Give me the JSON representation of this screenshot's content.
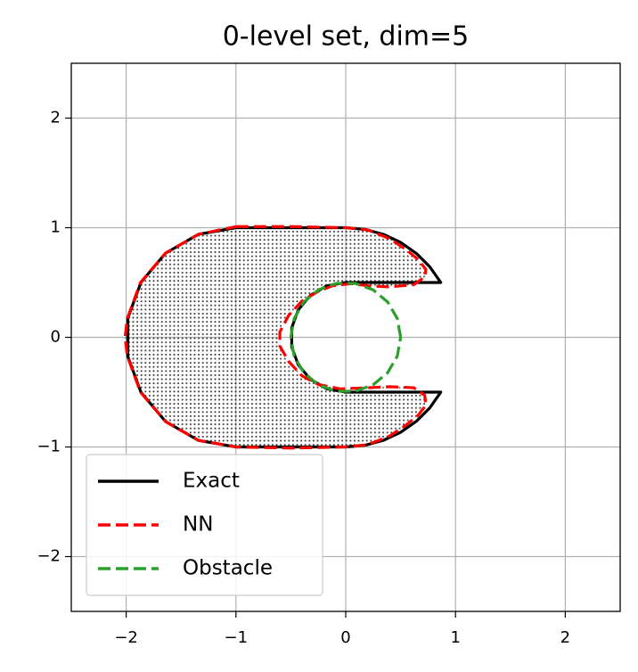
{
  "chart_data": {
    "type": "line",
    "title": "0-level set, dim=5",
    "xlim": [
      -2.5,
      2.5
    ],
    "ylim": [
      -2.5,
      2.5
    ],
    "xticks": [
      {
        "value": -2,
        "label": "−2"
      },
      {
        "value": -1,
        "label": "−1"
      },
      0,
      1,
      2
    ],
    "yticks": [
      {
        "value": -2,
        "label": "−2"
      },
      {
        "value": -1,
        "label": "−1"
      },
      0,
      1,
      2
    ],
    "grid": true,
    "legend": "lower left",
    "series": [
      {
        "name": "Exact",
        "color": "#000000",
        "linestyle": "solid",
        "x": [
          -1,
          0,
          0.174,
          0.342,
          0.5,
          0.643,
          0.766,
          0.866,
          0,
          -0.171,
          -0.321,
          -0.433,
          -0.492,
          -0.492,
          -0.433,
          -0.321,
          -0.171,
          0,
          0.866,
          0.766,
          0.643,
          0.5,
          0.342,
          0.174,
          0,
          -1,
          -1.342,
          -1.643,
          -1.866,
          -1.985,
          -1.985,
          -1.866,
          -1.643,
          -1.342,
          -1
        ],
        "values": [
          1,
          1,
          0.985,
          0.94,
          0.866,
          0.766,
          0.643,
          0.5,
          0.5,
          0.47,
          0.383,
          0.25,
          0.087,
          -0.087,
          -0.25,
          -0.383,
          -0.47,
          -0.5,
          -0.5,
          -0.643,
          -0.766,
          -0.866,
          -0.94,
          -0.985,
          -1,
          -1,
          -0.94,
          -0.766,
          -0.5,
          -0.174,
          0.174,
          0.5,
          0.766,
          0.94,
          1
        ]
      },
      {
        "name": "NN",
        "color": "#ff0000",
        "linestyle": "dashed",
        "fill": "dots",
        "fill_color": "#1f77b4",
        "x": [
          -1,
          -0.5,
          0,
          0.2,
          0.4,
          0.55,
          0.66,
          0.73,
          0.72,
          0.62,
          0.4,
          0.2,
          0.05,
          -0.12,
          -0.25,
          -0.4,
          -0.52,
          -0.6,
          -0.6,
          -0.52,
          -0.4,
          -0.25,
          -0.05,
          0.2,
          0.4,
          0.62,
          0.72,
          0.73,
          0.66,
          0.55,
          0.4,
          0.2,
          0,
          -0.5,
          -1,
          -1.34,
          -1.64,
          -1.87,
          -1.99,
          -2.01,
          -1.99,
          -1.87,
          -1.64,
          -1.34,
          -1
        ],
        "values": [
          1.01,
          1.01,
          1,
          0.98,
          0.9,
          0.8,
          0.71,
          0.62,
          0.55,
          0.48,
          0.46,
          0.47,
          0.49,
          0.47,
          0.42,
          0.33,
          0.2,
          0.05,
          -0.08,
          -0.22,
          -0.35,
          -0.43,
          -0.47,
          -0.46,
          -0.45,
          -0.46,
          -0.53,
          -0.62,
          -0.71,
          -0.8,
          -0.9,
          -0.98,
          -1,
          -1.01,
          -1,
          -0.94,
          -0.77,
          -0.5,
          -0.17,
          0,
          0.17,
          0.5,
          0.77,
          0.94,
          1.01
        ]
      },
      {
        "name": "Obstacle",
        "color": "#2ca02c",
        "linestyle": "dashed",
        "x": [
          0.5,
          0.47,
          0.383,
          0.25,
          0.087,
          -0.087,
          -0.25,
          -0.383,
          -0.47,
          -0.5,
          -0.47,
          -0.383,
          -0.25,
          -0.087,
          0.087,
          0.25,
          0.383,
          0.47,
          0.5
        ],
        "values": [
          0,
          0.171,
          0.321,
          0.433,
          0.492,
          0.492,
          0.433,
          0.321,
          0.171,
          0,
          -0.171,
          -0.321,
          -0.433,
          -0.492,
          -0.492,
          -0.433,
          -0.321,
          -0.171,
          0
        ]
      }
    ]
  }
}
